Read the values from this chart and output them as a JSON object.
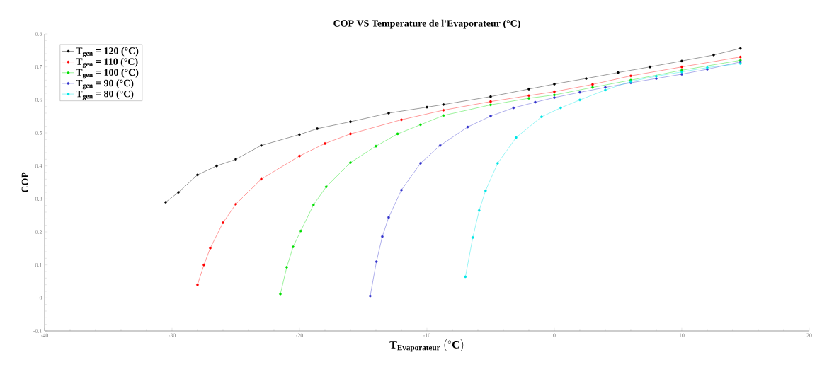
{
  "chart_data": {
    "type": "line",
    "title": "COP VS Temperature de l'Evaporateur (°C)",
    "xlabel": "\\mathbf{T}_{\\mathbf{Evaporateur}}\\ (^{\\circ}\\mathbf{C})",
    "ylabel": "COP",
    "xlim": [
      -40,
      20
    ],
    "xticks": [
      -40,
      -30,
      -20,
      -10,
      0,
      10,
      20
    ],
    "ylim": [
      -0.1,
      0.8
    ],
    "yticks": [
      -0.1,
      0,
      0.1,
      0.2,
      0.3,
      0.4,
      0.5,
      0.6,
      0.7,
      0.8
    ],
    "grid": false,
    "legend": "top left",
    "marker": "circle",
    "line_style": "solid",
    "series": [
      {
        "name": "T$_{gen}$ = 120 (°C)",
        "color": "#000000",
        "x": [
          -30.5,
          -29.5,
          -28,
          -26.5,
          -25,
          -23,
          -20,
          -18.6,
          -16,
          -13,
          -10,
          -8.7,
          -5,
          -2,
          0,
          2.5,
          5,
          7.5,
          10,
          12.5,
          14.6
        ],
        "values": [
          0.29,
          0.32,
          0.373,
          0.4,
          0.42,
          0.462,
          0.495,
          0.513,
          0.534,
          0.56,
          0.578,
          0.586,
          0.61,
          0.633,
          0.648,
          0.665,
          0.683,
          0.7,
          0.718,
          0.736,
          0.756
        ]
      },
      {
        "name": "T$_{gen}$ = 110 (°C)",
        "color": "#ff0000",
        "x": [
          -28,
          -27.5,
          -27,
          -26,
          -25,
          -23,
          -20,
          -18,
          -16,
          -12,
          -8.7,
          -5,
          -2,
          0,
          3,
          6,
          10,
          14.6
        ],
        "values": [
          0.04,
          0.1,
          0.151,
          0.228,
          0.284,
          0.36,
          0.43,
          0.468,
          0.497,
          0.54,
          0.569,
          0.595,
          0.613,
          0.625,
          0.647,
          0.673,
          0.7,
          0.73
        ]
      },
      {
        "name": "T$_{gen}$ = 100 (°C)",
        "color": "#00dd00",
        "x": [
          -21.5,
          -21,
          -20.5,
          -19.9,
          -18.9,
          -17.9,
          -16,
          -14,
          -12.3,
          -10.5,
          -8.7,
          -5,
          -2,
          0,
          3,
          6,
          10,
          14.6
        ],
        "values": [
          0.012,
          0.093,
          0.155,
          0.203,
          0.282,
          0.337,
          0.41,
          0.46,
          0.497,
          0.525,
          0.553,
          0.585,
          0.605,
          0.615,
          0.638,
          0.66,
          0.69,
          0.72
        ]
      },
      {
        "name": "T$_{gen}$ = 90 (°C)",
        "color": "#3333cc",
        "x": [
          -14.45,
          -13.96,
          -13.5,
          -13,
          -12,
          -10.5,
          -8.96,
          -6.8,
          -5,
          -3.2,
          -1.5,
          0,
          2,
          4,
          6,
          8,
          10,
          12,
          14.6
        ],
        "values": [
          0.006,
          0.11,
          0.186,
          0.244,
          0.327,
          0.408,
          0.462,
          0.518,
          0.551,
          0.576,
          0.593,
          0.607,
          0.623,
          0.638,
          0.652,
          0.665,
          0.678,
          0.693,
          0.715
        ]
      },
      {
        "name": "T$_{gen}$ = 80 (°C)",
        "color": "#00e5e5",
        "x": [
          -6.98,
          -6.4,
          -5.9,
          -5.4,
          -4.45,
          -3,
          -1,
          0.5,
          2,
          4,
          6,
          8,
          10,
          12,
          14.6
        ],
        "values": [
          0.064,
          0.183,
          0.265,
          0.325,
          0.408,
          0.486,
          0.549,
          0.576,
          0.6,
          0.63,
          0.656,
          0.672,
          0.685,
          0.698,
          0.71
        ]
      }
    ]
  }
}
